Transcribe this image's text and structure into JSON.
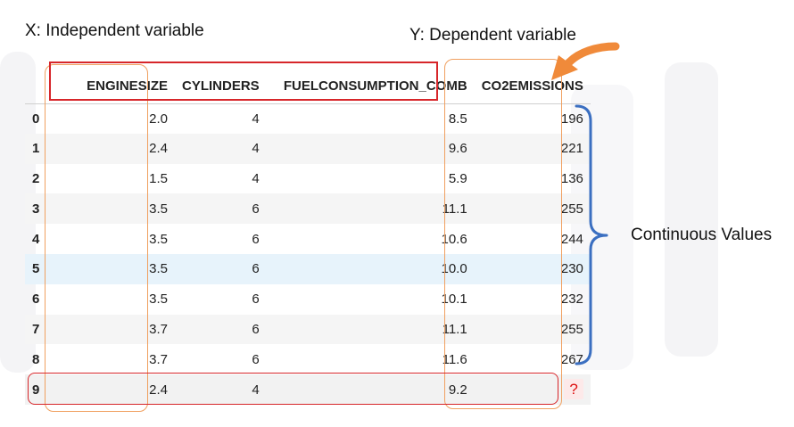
{
  "labels": {
    "x_label": "X: Independent variable",
    "y_label": "Y: Dependent variable",
    "continuous_label": "Continuous Values"
  },
  "table": {
    "columns": [
      "",
      "ENGINESIZE",
      "CYLINDERS",
      "FUELCONSUMPTION_COMB",
      "CO2EMISSIONS"
    ],
    "rows": [
      [
        "0",
        "2.0",
        "4",
        "8.5",
        "196"
      ],
      [
        "1",
        "2.4",
        "4",
        "9.6",
        "221"
      ],
      [
        "2",
        "1.5",
        "4",
        "5.9",
        "136"
      ],
      [
        "3",
        "3.5",
        "6",
        "11.1",
        "255"
      ],
      [
        "4",
        "3.5",
        "6",
        "10.6",
        "244"
      ],
      [
        "5",
        "3.5",
        "6",
        "10.0",
        "230"
      ],
      [
        "6",
        "3.5",
        "6",
        "10.1",
        "232"
      ],
      [
        "7",
        "3.7",
        "6",
        "11.1",
        "255"
      ],
      [
        "8",
        "3.7",
        "6",
        "11.6",
        "267"
      ],
      [
        "9",
        "2.4",
        "4",
        "9.2",
        "?"
      ]
    ]
  },
  "colors": {
    "header_box": "#d7262a",
    "column_box": "#f0a060",
    "arrow": "#f08a3a",
    "brace": "#3b6fc1",
    "highlight_row": "#e7f3fb"
  }
}
